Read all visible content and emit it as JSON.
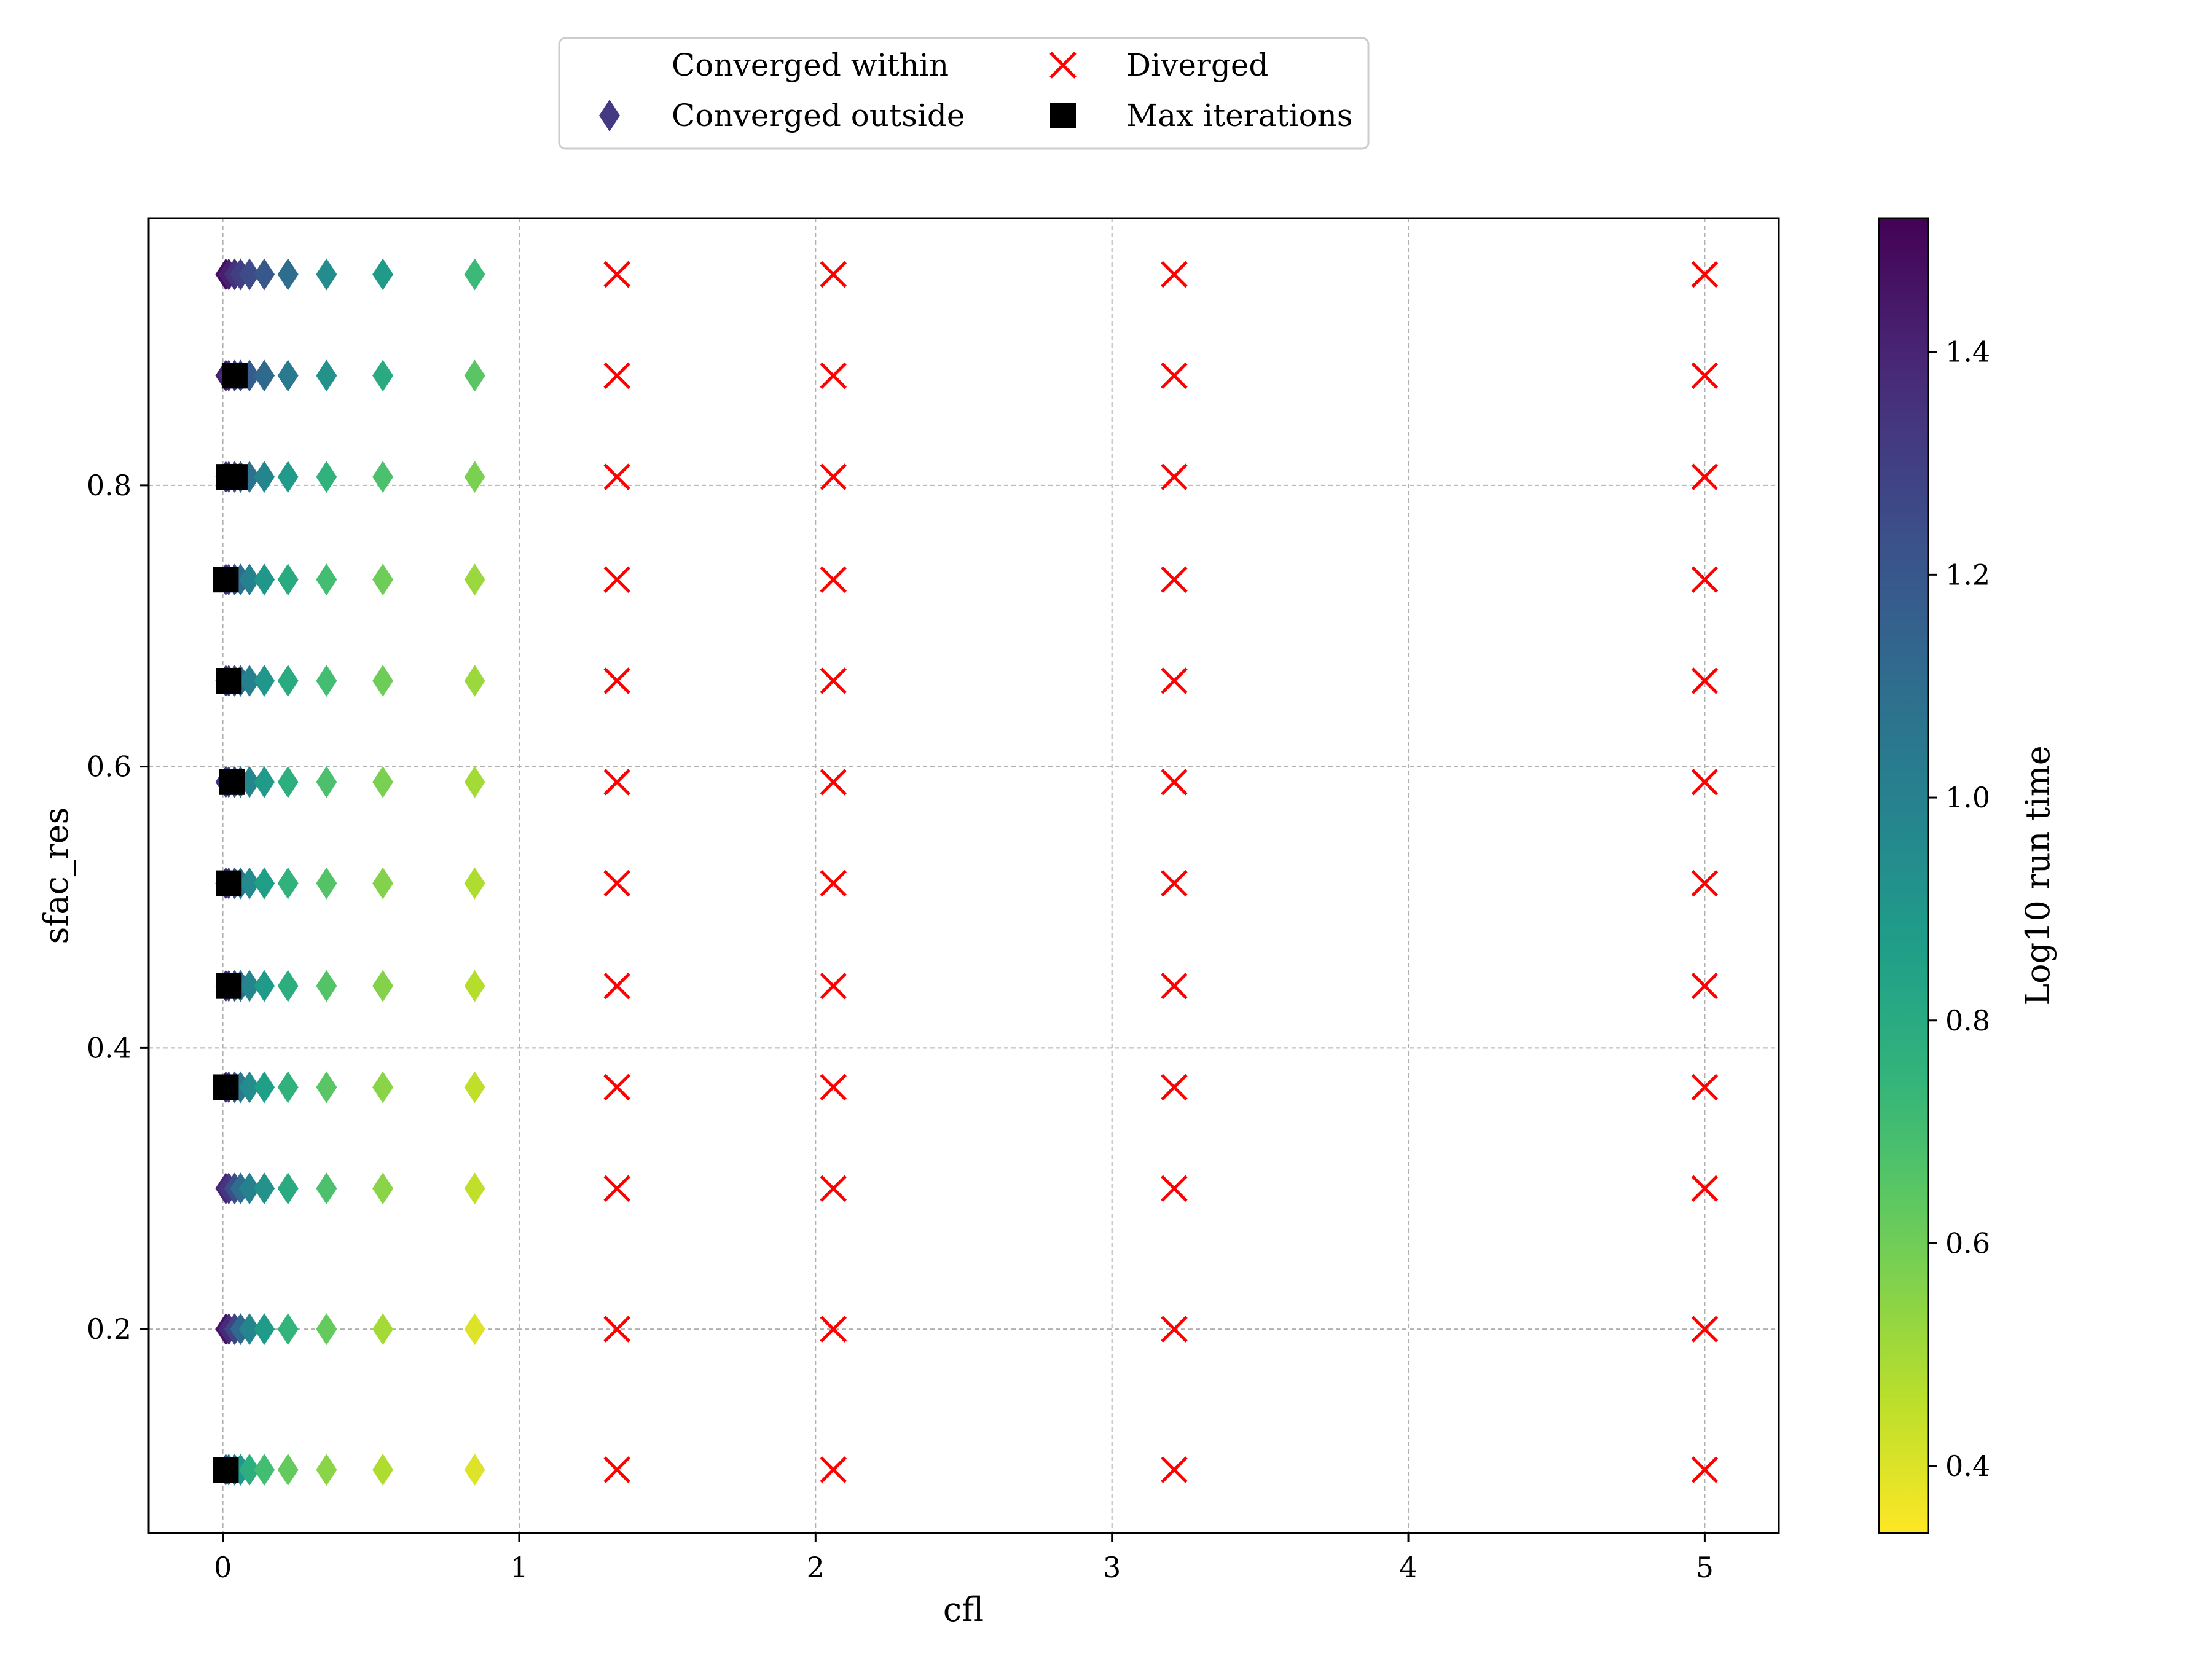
{
  "chart_data": {
    "type": "scatter",
    "xlabel": "cfl",
    "ylabel": "sfac_res",
    "xlim": [
      -0.25,
      5.25
    ],
    "ylim": [
      0.055,
      0.99
    ],
    "x_ticks": [
      0,
      1,
      2,
      3,
      4,
      5
    ],
    "y_ticks": [
      0.2,
      0.4,
      0.6,
      0.8
    ],
    "grid": true,
    "legend": {
      "placement": "top-center-outside",
      "columns": 2,
      "entries": [
        {
          "name": "Converged within",
          "marker": "none"
        },
        {
          "name": "Diverged",
          "marker": "x",
          "color": "#ff0000"
        },
        {
          "name": "Converged outside",
          "marker": "diamond",
          "color": "#443983"
        },
        {
          "name": "Max iterations",
          "marker": "square",
          "color": "#000000"
        }
      ]
    },
    "colorbar": {
      "label": "Log10 run time",
      "colormap": "viridis_r",
      "range": [
        0.34,
        1.52
      ],
      "ticks": [
        0.4,
        0.6,
        0.8,
        1.0,
        1.2,
        1.4
      ]
    },
    "y_levels": [
      0.1,
      0.2,
      0.3,
      0.372,
      0.444,
      0.517,
      0.589,
      0.661,
      0.733,
      0.806,
      0.878,
      0.95
    ],
    "series": [
      {
        "name": "Converged outside",
        "marker": "diamond",
        "x_values": [
          0.01,
          0.02,
          0.04,
          0.06,
          0.09,
          0.14,
          0.22,
          0.35,
          0.54,
          0.85
        ],
        "color_values": [
          [
            1.15,
            1.05,
            0.98,
            0.9,
            0.78,
            0.7,
            0.62,
            0.55,
            0.48,
            0.4
          ],
          [
            1.46,
            1.38,
            1.28,
            1.12,
            0.98,
            0.88,
            0.75,
            0.62,
            0.5,
            0.4
          ],
          [
            1.4,
            1.34,
            1.24,
            1.1,
            1.0,
            0.92,
            0.8,
            0.68,
            0.55,
            0.45
          ],
          [
            1.35,
            1.28,
            1.18,
            1.05,
            0.95,
            0.86,
            0.76,
            0.65,
            0.55,
            0.45
          ],
          [
            1.38,
            1.3,
            1.2,
            1.08,
            0.98,
            0.88,
            0.78,
            0.66,
            0.56,
            0.47
          ],
          [
            1.36,
            1.28,
            1.18,
            1.06,
            0.96,
            0.86,
            0.76,
            0.66,
            0.56,
            0.48
          ],
          [
            1.34,
            1.26,
            1.18,
            1.08,
            0.98,
            0.88,
            0.78,
            0.68,
            0.58,
            0.5
          ],
          [
            1.35,
            1.28,
            1.2,
            1.1,
            1.0,
            0.9,
            0.8,
            0.7,
            0.6,
            0.52
          ],
          [
            1.34,
            1.26,
            1.18,
            1.1,
            1.0,
            0.9,
            0.8,
            0.7,
            0.6,
            0.52
          ],
          [
            1.35,
            1.3,
            1.22,
            1.14,
            1.08,
            0.98,
            0.88,
            0.76,
            0.68,
            0.58
          ],
          [
            1.42,
            1.35,
            1.28,
            1.22,
            1.18,
            1.12,
            1.04,
            0.92,
            0.8,
            0.65
          ],
          [
            1.48,
            1.42,
            1.35,
            1.3,
            1.25,
            1.2,
            1.1,
            0.95,
            0.88,
            0.72
          ]
        ]
      },
      {
        "name": "Max iterations",
        "marker": "square",
        "color": "#000000",
        "points": [
          {
            "x": 0.01,
            "y": 0.1
          },
          {
            "x": 0.01,
            "y": 0.372
          },
          {
            "x": 0.02,
            "y": 0.444
          },
          {
            "x": 0.02,
            "y": 0.517
          },
          {
            "x": 0.03,
            "y": 0.589
          },
          {
            "x": 0.02,
            "y": 0.661
          },
          {
            "x": 0.01,
            "y": 0.733
          },
          {
            "x": 0.02,
            "y": 0.806
          },
          {
            "x": 0.04,
            "y": 0.806
          },
          {
            "x": 0.04,
            "y": 0.878
          }
        ]
      },
      {
        "name": "Diverged",
        "marker": "x",
        "color": "#ff0000",
        "x_values": [
          1.33,
          2.06,
          3.21,
          5.0
        ]
      }
    ]
  }
}
